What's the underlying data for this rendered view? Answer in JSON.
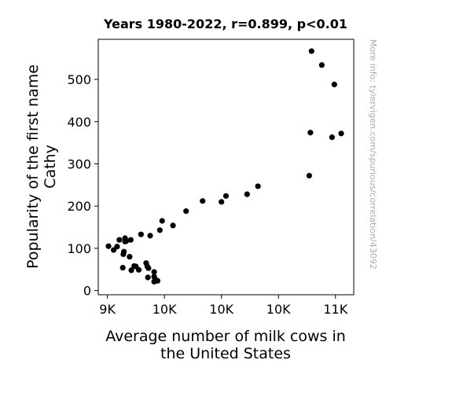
{
  "chart_data": {
    "type": "scatter",
    "title": "Years 1980-2022, r=0.899, p<0.01",
    "xlabel": [
      "Average number of milk cows in",
      "the United States"
    ],
    "ylabel": [
      "Popularity of the first name",
      "Cathy"
    ],
    "side_note": "More info: tylervigen.com/spurious/correlation/43092",
    "x_ticks": [
      {
        "value": 9000,
        "label": "9K"
      },
      {
        "value": 9500,
        "label": "10K"
      },
      {
        "value": 10000,
        "label": "10K"
      },
      {
        "value": 10500,
        "label": "10K"
      },
      {
        "value": 11000,
        "label": "11K"
      }
    ],
    "y_ticks": [
      0,
      100,
      200,
      300,
      400,
      500
    ],
    "xlim": [
      8920,
      11160
    ],
    "ylim": [
      -10,
      595
    ],
    "grid": false,
    "marker_color": "#000000",
    "points": [
      [
        9010,
        105
      ],
      [
        9055,
        96
      ],
      [
        9085,
        104
      ],
      [
        9105,
        120
      ],
      [
        9145,
        92
      ],
      [
        9140,
        86
      ],
      [
        9155,
        124
      ],
      [
        9165,
        117
      ],
      [
        9155,
        116
      ],
      [
        9205,
        120
      ],
      [
        9195,
        80
      ],
      [
        9295,
        133
      ],
      [
        9135,
        54
      ],
      [
        9210,
        48
      ],
      [
        9235,
        58
      ],
      [
        9250,
        57
      ],
      [
        9275,
        49
      ],
      [
        9340,
        65
      ],
      [
        9350,
        57
      ],
      [
        9360,
        53
      ],
      [
        9355,
        31
      ],
      [
        9375,
        130
      ],
      [
        9410,
        44
      ],
      [
        9410,
        33
      ],
      [
        9420,
        26
      ],
      [
        9410,
        21
      ],
      [
        9440,
        23
      ],
      [
        9460,
        143
      ],
      [
        9480,
        165
      ],
      [
        9575,
        154
      ],
      [
        9690,
        188
      ],
      [
        9835,
        212
      ],
      [
        10000,
        210
      ],
      [
        10040,
        224
      ],
      [
        10225,
        228
      ],
      [
        10320,
        247
      ],
      [
        10770,
        272
      ],
      [
        10790,
        567
      ],
      [
        10780,
        374
      ],
      [
        10880,
        534
      ],
      [
        10990,
        488
      ],
      [
        10970,
        363
      ],
      [
        11050,
        372
      ]
    ]
  }
}
